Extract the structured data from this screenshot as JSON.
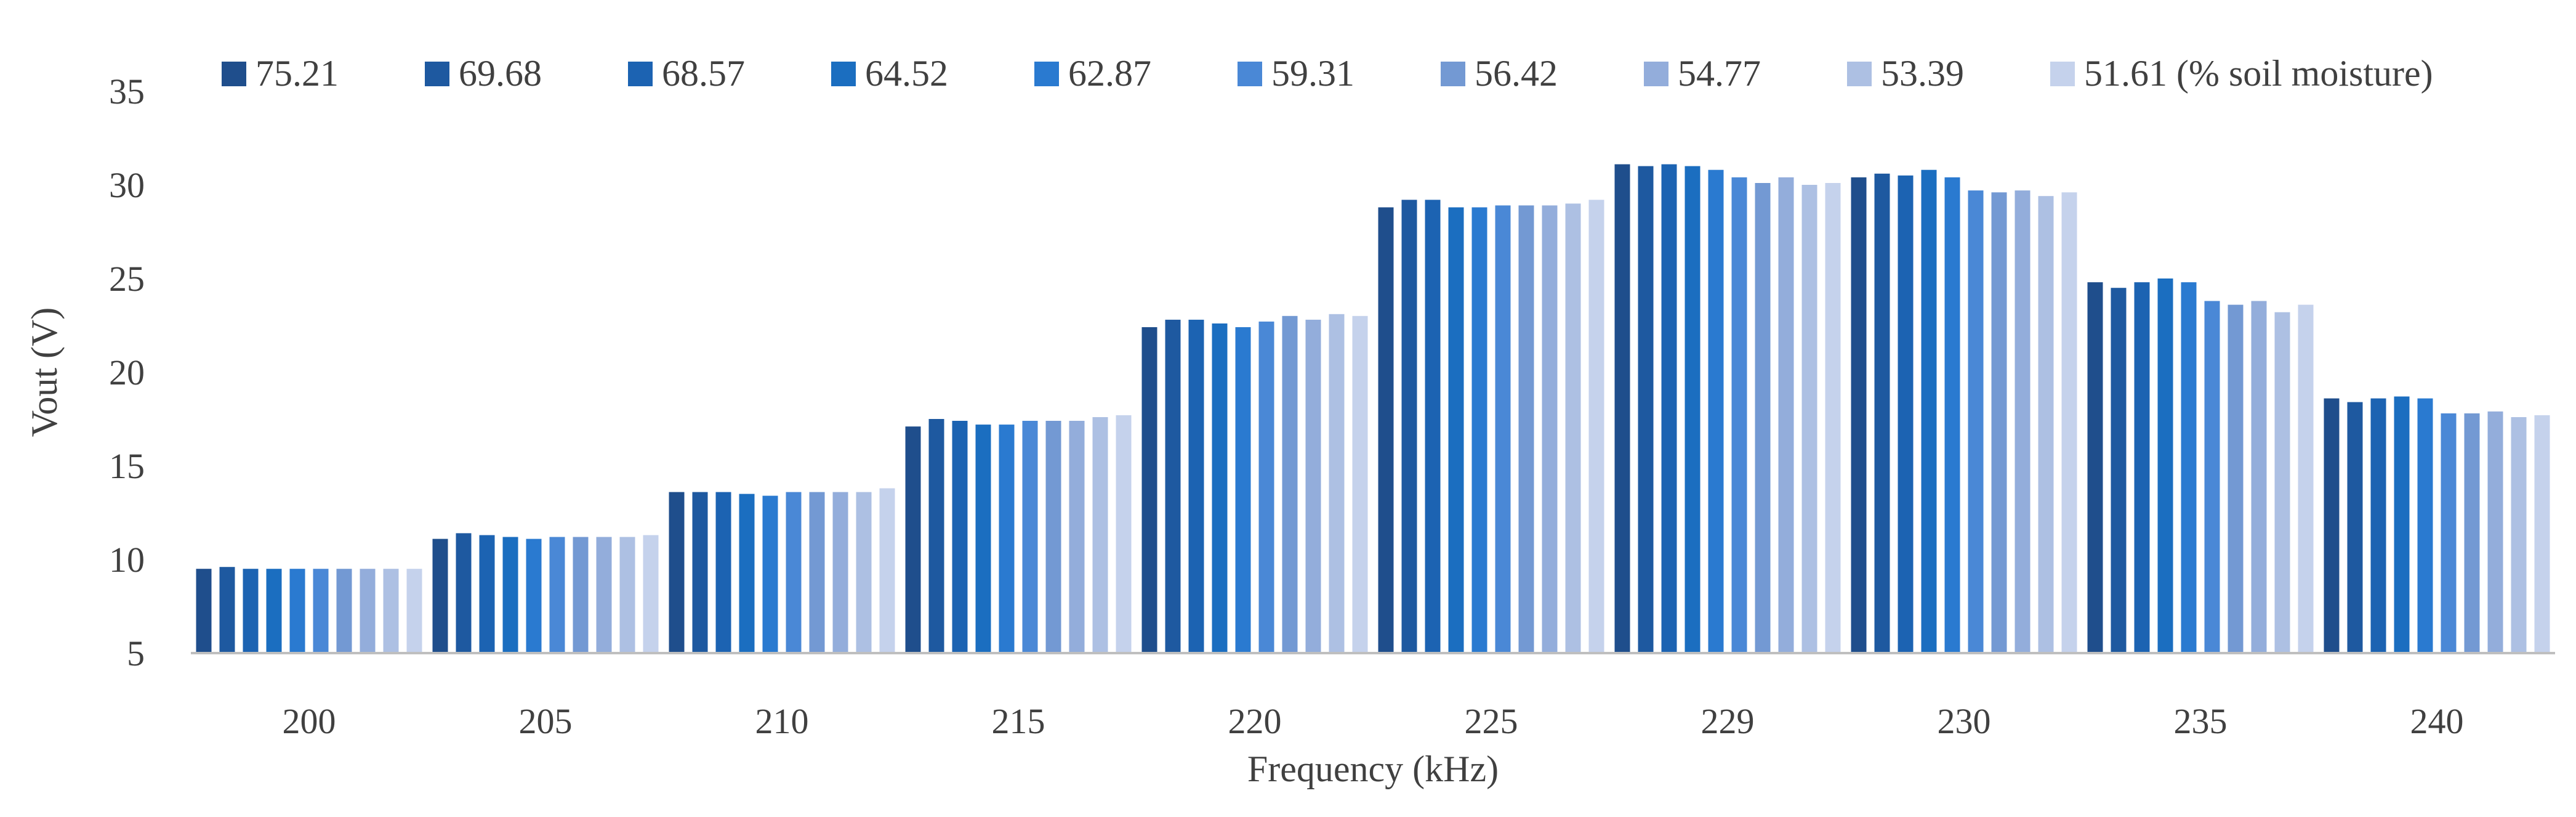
{
  "chart_data": {
    "type": "bar",
    "title": "",
    "xlabel": "Frequency (kHz)",
    "ylabel": "Vout (V)",
    "ylim": [
      5,
      35
    ],
    "yticks": [
      5,
      10,
      15,
      20,
      25,
      30,
      35
    ],
    "grid": false,
    "legend_position": "top",
    "categories": [
      "200",
      "205",
      "210",
      "215",
      "220",
      "225",
      "229",
      "230",
      "235",
      "240"
    ],
    "series": [
      {
        "name": "75.21",
        "color": "#1F4E8C",
        "values": [
          9.5,
          11.1,
          13.6,
          17.1,
          22.4,
          28.8,
          31.1,
          30.4,
          24.8,
          18.6
        ]
      },
      {
        "name": "69.68",
        "color": "#1E59A0",
        "values": [
          9.6,
          11.4,
          13.6,
          17.5,
          22.8,
          29.2,
          31.0,
          30.6,
          24.5,
          18.4
        ]
      },
      {
        "name": "68.57",
        "color": "#1C63B2",
        "values": [
          9.5,
          11.3,
          13.6,
          17.4,
          22.8,
          29.2,
          31.1,
          30.5,
          24.8,
          18.6
        ]
      },
      {
        "name": "64.52",
        "color": "#1B6EC0",
        "values": [
          9.5,
          11.2,
          13.5,
          17.2,
          22.6,
          28.8,
          31.0,
          30.8,
          25.0,
          18.7
        ]
      },
      {
        "name": "62.87",
        "color": "#2A7AD0",
        "values": [
          9.5,
          11.1,
          13.4,
          17.2,
          22.4,
          28.8,
          30.8,
          30.4,
          24.8,
          18.6
        ]
      },
      {
        "name": "59.31",
        "color": "#4A88D6",
        "values": [
          9.5,
          11.2,
          13.6,
          17.4,
          22.7,
          28.9,
          30.4,
          29.7,
          23.8,
          17.8
        ]
      },
      {
        "name": "56.42",
        "color": "#7399D3",
        "values": [
          9.5,
          11.2,
          13.6,
          17.4,
          23.0,
          28.9,
          30.1,
          29.6,
          23.6,
          17.8
        ]
      },
      {
        "name": "54.77",
        "color": "#93ADDB",
        "values": [
          9.5,
          11.2,
          13.6,
          17.4,
          22.8,
          28.9,
          30.4,
          29.7,
          23.8,
          17.9
        ]
      },
      {
        "name": "53.39",
        "color": "#ADC0E3",
        "values": [
          9.5,
          11.2,
          13.6,
          17.6,
          23.1,
          29.0,
          30.0,
          29.4,
          23.2,
          17.6
        ]
      },
      {
        "name": "51.61 (% soil moisture)",
        "color": "#C5D2EC",
        "values": [
          9.5,
          11.3,
          13.8,
          17.7,
          23.0,
          29.2,
          30.1,
          29.6,
          23.6,
          17.7
        ]
      }
    ]
  }
}
